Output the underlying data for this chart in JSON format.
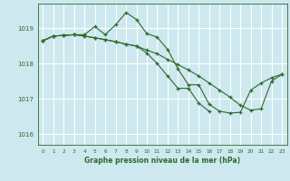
{
  "background_color": "#cde8ee",
  "grid_color": "#ffffff",
  "line_color": "#2d6a2d",
  "xlabel": "Graphe pression niveau de la mer (hPa)",
  "ylim": [
    1015.7,
    1019.7
  ],
  "yticks": [
    1016,
    1017,
    1018,
    1019
  ],
  "xlim": [
    -0.5,
    23.5
  ],
  "xticks": [
    0,
    1,
    2,
    3,
    4,
    5,
    6,
    7,
    8,
    9,
    10,
    11,
    12,
    13,
    14,
    15,
    16,
    17,
    18,
    19,
    20,
    21,
    22,
    23
  ],
  "series": [
    {
      "x": [
        0,
        1,
        2,
        3,
        4,
        5,
        6,
        7,
        8,
        9,
        10,
        11,
        12,
        13,
        14,
        15,
        16,
        17,
        18,
        19,
        20,
        21,
        22,
        23
      ],
      "y": [
        1018.65,
        1018.78,
        1018.8,
        1018.82,
        1018.82,
        1019.05,
        1018.82,
        1019.1,
        1019.45,
        1019.25,
        1018.85,
        1018.75,
        1018.4,
        1017.85,
        1017.4,
        1017.4,
        1016.85,
        1016.65,
        1016.6,
        1016.62,
        1017.25,
        1017.45,
        1017.6,
        1017.7
      ]
    },
    {
      "x": [
        0,
        1,
        2,
        3,
        4,
        5,
        6,
        7,
        8,
        9,
        10,
        11,
        12,
        13,
        14,
        15,
        16,
        17,
        18,
        19,
        20,
        21,
        22,
        23
      ],
      "y": [
        1018.65,
        1018.78,
        1018.8,
        1018.82,
        1018.78,
        1018.73,
        1018.68,
        1018.62,
        1018.55,
        1018.5,
        1018.38,
        1018.28,
        1018.12,
        1017.97,
        1017.82,
        1017.65,
        1017.45,
        1017.25,
        1017.05,
        1016.82,
        1016.68,
        1016.72,
        1017.5,
        1017.7
      ]
    },
    {
      "x": [
        0,
        1,
        2,
        3,
        4,
        5,
        6,
        7,
        8,
        9,
        10,
        11,
        12,
        13,
        14,
        15,
        16
      ],
      "y": [
        1018.65,
        1018.78,
        1018.8,
        1018.82,
        1018.78,
        1018.73,
        1018.68,
        1018.62,
        1018.55,
        1018.5,
        1018.3,
        1018.0,
        1017.65,
        1017.3,
        1017.3,
        1016.88,
        1016.65
      ]
    }
  ]
}
